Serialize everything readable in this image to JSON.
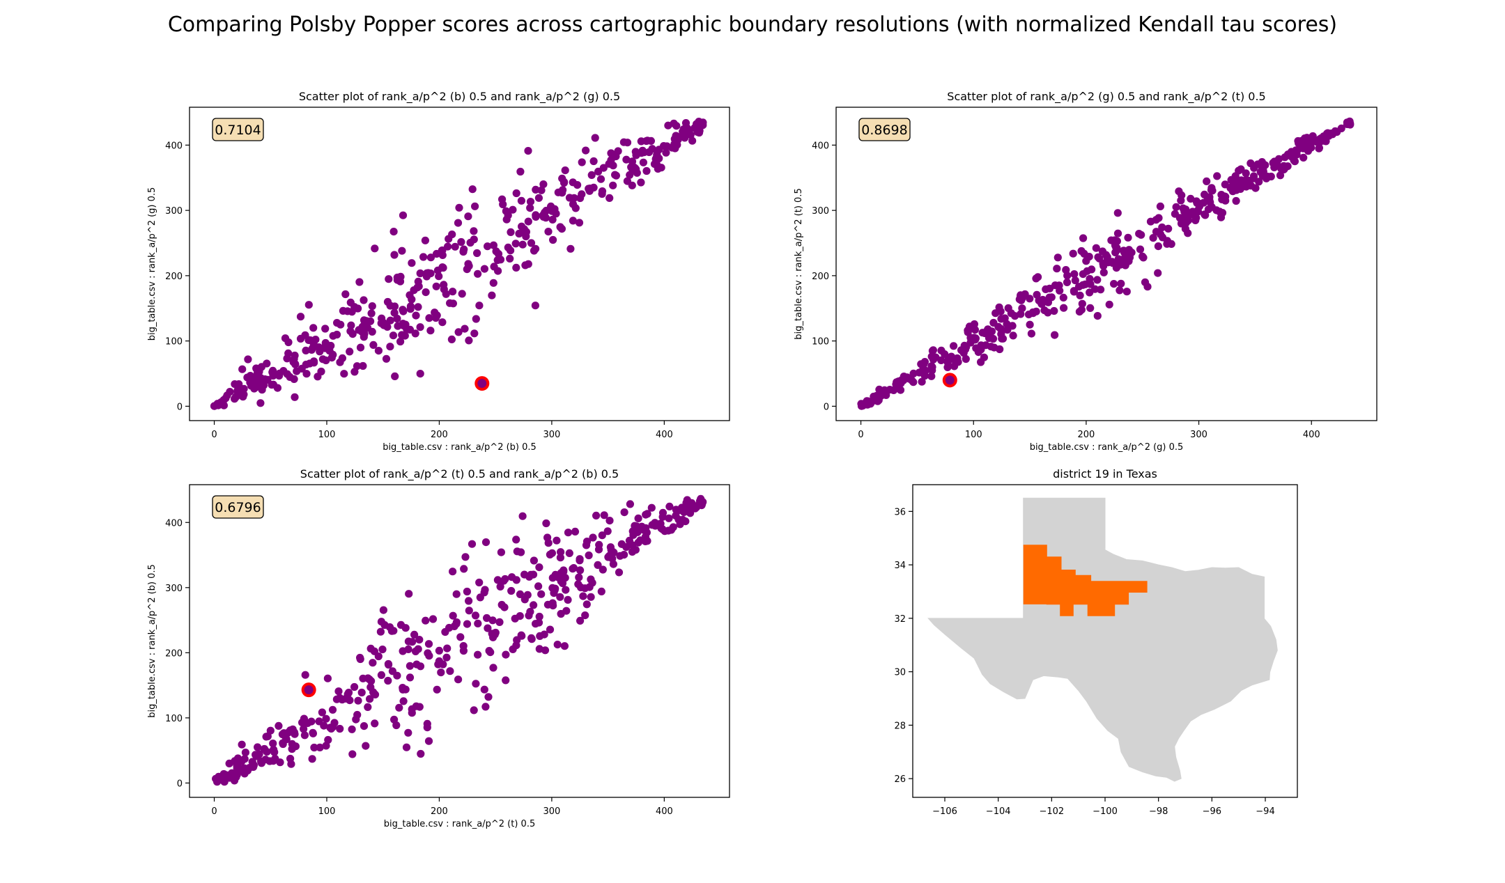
{
  "figure": {
    "suptitle": "Comparing Polsby Popper scores across cartographic boundary resolutions (with normalized Kendall tau scores)"
  },
  "colors": {
    "points": "#800080",
    "highlight_ring": "#ff0000",
    "badge_fill": "#f5deb3",
    "state_fill": "#d3d3d3",
    "district_fill": "#ff6a00"
  },
  "chart_data": [
    {
      "type": "scatter",
      "title": "Scatter plot of rank_a/p^2 (b) 0.5 and rank_a/p^2 (g) 0.5",
      "xlabel": "big_table.csv : rank_a/p^2 (b) 0.5",
      "ylabel": "big_table.csv : rank_a/p^2 (g) 0.5",
      "tau_label": "0.7104",
      "xlim": [
        -22,
        458
      ],
      "ylim": [
        -22,
        458
      ],
      "xticks": [
        0,
        100,
        200,
        300,
        400
      ],
      "yticks": [
        0,
        100,
        200,
        300,
        400
      ],
      "n_points": 435,
      "tau": 0.7104,
      "highlight": {
        "x": 238,
        "y": 35
      },
      "grid": false
    },
    {
      "type": "scatter",
      "title": "Scatter plot of rank_a/p^2 (g) 0.5 and rank_a/p^2 (t) 0.5",
      "xlabel": "big_table.csv : rank_a/p^2 (g) 0.5",
      "ylabel": "big_table.csv : rank_a/p^2 (t) 0.5",
      "tau_label": "0.8698",
      "xlim": [
        -22,
        458
      ],
      "ylim": [
        -22,
        458
      ],
      "xticks": [
        0,
        100,
        200,
        300,
        400
      ],
      "yticks": [
        0,
        100,
        200,
        300,
        400
      ],
      "n_points": 435,
      "tau": 0.8698,
      "highlight": {
        "x": 79,
        "y": 40
      },
      "grid": false
    },
    {
      "type": "scatter",
      "title": "Scatter plot of rank_a/p^2 (t) 0.5 and rank_a/p^2 (b) 0.5",
      "xlabel": "big_table.csv : rank_a/p^2 (t) 0.5",
      "ylabel": "big_table.csv : rank_a/p^2 (b) 0.5",
      "tau_label": "0.6796",
      "xlim": [
        -22,
        458
      ],
      "ylim": [
        -22,
        458
      ],
      "xticks": [
        0,
        100,
        200,
        300,
        400
      ],
      "yticks": [
        0,
        100,
        200,
        300,
        400
      ],
      "n_points": 435,
      "tau": 0.6796,
      "highlight": {
        "x": 84,
        "y": 143
      },
      "grid": false
    },
    {
      "type": "map",
      "title": "district 19 in Texas",
      "xlim": [
        -107.2,
        -92.8
      ],
      "ylim": [
        25.3,
        37.0
      ],
      "xticks": [
        -106,
        -104,
        -102,
        -100,
        -98,
        -96,
        -94
      ],
      "xtick_labels": [
        "−106",
        "−104",
        "−102",
        "−100",
        "−98",
        "−96",
        "−94"
      ],
      "yticks": [
        26,
        28,
        30,
        32,
        34,
        36
      ],
      "ytick_labels": [
        "26",
        "28",
        "30",
        "32",
        "34",
        "36"
      ],
      "state_outline_lonlat": [
        [
          -103.06,
          36.5
        ],
        [
          -103.0,
          36.5
        ],
        [
          -100.0,
          36.5
        ],
        [
          -100.0,
          34.56
        ],
        [
          -99.7,
          34.4
        ],
        [
          -99.2,
          34.2
        ],
        [
          -98.6,
          34.15
        ],
        [
          -98.0,
          34.0
        ],
        [
          -97.5,
          33.9
        ],
        [
          -97.0,
          33.75
        ],
        [
          -96.5,
          33.8
        ],
        [
          -96.0,
          33.9
        ],
        [
          -95.5,
          33.88
        ],
        [
          -95.0,
          33.9
        ],
        [
          -94.5,
          33.65
        ],
        [
          -94.04,
          33.55
        ],
        [
          -94.04,
          33.02
        ],
        [
          -94.04,
          32.5
        ],
        [
          -94.04,
          31.99
        ],
        [
          -93.8,
          31.7
        ],
        [
          -93.6,
          31.2
        ],
        [
          -93.55,
          30.8
        ],
        [
          -93.7,
          30.4
        ],
        [
          -93.83,
          29.98
        ],
        [
          -93.85,
          29.7
        ],
        [
          -94.5,
          29.5
        ],
        [
          -94.9,
          29.3
        ],
        [
          -95.3,
          28.9
        ],
        [
          -95.9,
          28.6
        ],
        [
          -96.4,
          28.4
        ],
        [
          -96.8,
          28.15
        ],
        [
          -97.05,
          27.8
        ],
        [
          -97.25,
          27.5
        ],
        [
          -97.4,
          27.2
        ],
        [
          -97.35,
          26.8
        ],
        [
          -97.2,
          26.3
        ],
        [
          -97.15,
          26.0
        ],
        [
          -97.4,
          25.9
        ],
        [
          -97.7,
          26.05
        ],
        [
          -98.1,
          26.1
        ],
        [
          -98.6,
          26.25
        ],
        [
          -99.1,
          26.45
        ],
        [
          -99.4,
          27.0
        ],
        [
          -99.5,
          27.5
        ],
        [
          -99.9,
          27.8
        ],
        [
          -100.3,
          28.25
        ],
        [
          -100.7,
          28.9
        ],
        [
          -101.0,
          29.3
        ],
        [
          -101.4,
          29.75
        ],
        [
          -101.75,
          29.8
        ],
        [
          -102.3,
          29.85
        ],
        [
          -102.7,
          29.7
        ],
        [
          -103.0,
          29.0
        ],
        [
          -103.3,
          28.98
        ],
        [
          -103.8,
          29.25
        ],
        [
          -104.3,
          29.55
        ],
        [
          -104.6,
          29.9
        ],
        [
          -104.9,
          30.5
        ],
        [
          -105.4,
          30.9
        ],
        [
          -106.0,
          31.4
        ],
        [
          -106.4,
          31.75
        ],
        [
          -106.62,
          32.0
        ],
        [
          -104.0,
          32.0
        ],
        [
          -103.06,
          32.0
        ]
      ],
      "district_outline_lonlat": [
        [
          -103.06,
          34.75
        ],
        [
          -102.17,
          34.75
        ],
        [
          -102.17,
          34.31
        ],
        [
          -101.63,
          34.31
        ],
        [
          -101.63,
          33.82
        ],
        [
          -101.1,
          33.82
        ],
        [
          -101.1,
          33.62
        ],
        [
          -100.52,
          33.62
        ],
        [
          -100.52,
          33.4
        ],
        [
          -98.42,
          33.4
        ],
        [
          -98.42,
          32.96
        ],
        [
          -99.11,
          32.96
        ],
        [
          -99.11,
          32.51
        ],
        [
          -99.63,
          32.51
        ],
        [
          -99.63,
          32.08
        ],
        [
          -100.66,
          32.08
        ],
        [
          -100.66,
          32.51
        ],
        [
          -101.18,
          32.51
        ],
        [
          -101.18,
          32.08
        ],
        [
          -101.69,
          32.08
        ],
        [
          -101.69,
          32.51
        ],
        [
          -102.2,
          32.51
        ],
        [
          -102.2,
          32.52
        ],
        [
          -103.06,
          32.52
        ]
      ]
    }
  ]
}
